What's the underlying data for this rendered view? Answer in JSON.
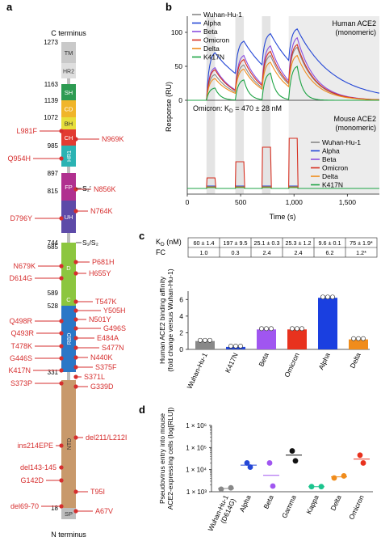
{
  "panels": {
    "a": "a",
    "b": "b",
    "c": "c",
    "d": "d"
  },
  "panel_a": {
    "c_terminus": "C terminus",
    "n_terminus": "N terminus",
    "domains": [
      {
        "label": "TM",
        "color": "#c9c9c9"
      },
      {
        "label": "HR2",
        "color": "#dedede"
      },
      {
        "label": "SH",
        "color": "#2d9b52"
      },
      {
        "label": "CD",
        "color": "#f0b52a"
      },
      {
        "label": "BH",
        "color": "#e7df3b"
      },
      {
        "label": "CH",
        "color": "#e23b32"
      },
      {
        "label": "HR1",
        "color": "#2bb3b3"
      },
      {
        "label": "FP",
        "color": "#b0308f"
      },
      {
        "label": "UH",
        "color": "#5d4aa8"
      },
      {
        "label": "D",
        "color": "#8cc63f"
      },
      {
        "label": "C",
        "color": "#8cc63f"
      },
      {
        "label": "RBD",
        "color": "#2a77c7"
      },
      {
        "label": "NTD",
        "color": "#c8996b"
      },
      {
        "label": "SP",
        "color": "#bdbdbd"
      }
    ],
    "positions": [
      "1273",
      "1163",
      "1139",
      "1072",
      "985",
      "897",
      "815",
      "744",
      "685",
      "589",
      "528",
      "331",
      "18"
    ],
    "sites": {
      "s2p": "S₂′",
      "s1s2": "S₁/S₂"
    },
    "mutations_left": [
      "L981F",
      "Q954H",
      "D796Y",
      "N679K",
      "D614G",
      "Q498R",
      "Q493R",
      "T478K",
      "G446S",
      "K417N",
      "S373P",
      "ins214EPE",
      "del143-145",
      "G142D",
      "del69-70"
    ],
    "mutations_right": [
      "N969K",
      "N856K",
      "N764K",
      "P681H",
      "H655Y",
      "T547K",
      "Y505H",
      "N501Y",
      "G496S",
      "E484A",
      "S477N",
      "N440K",
      "S375F",
      "S371L",
      "G339D",
      "del211/L212I",
      "T95I",
      "A67V"
    ]
  },
  "panel_b": {
    "human_label": "Human ACE2\n(monomeric)",
    "mouse_label": "Mouse ACE2\n(monomeric)",
    "omicron_kd": "Omicron: K",
    "kd_sub": "D",
    "kd_value": " = 470 ± 28 nM",
    "ylabel": "Response (RU)",
    "xlabel": "Time (s)",
    "legend": [
      "Wuhan-Hu-1",
      "Alpha",
      "Beta",
      "Omicron",
      "Delta",
      "K417N"
    ],
    "colors": [
      "#888888",
      "#2447d6",
      "#8a4fe0",
      "#d62e1f",
      "#f08c1b",
      "#1da344"
    ],
    "yticks": [
      "0",
      "50",
      "100"
    ],
    "xticks": [
      "0",
      "500",
      "1,000",
      "1,500"
    ]
  },
  "panel_c": {
    "kd_header": "K",
    "kd_sub": "D",
    "kd_unit": " (nM)",
    "fc_header": "FC",
    "kd_values": [
      "60 ± 1.4",
      "197 ± 9.5",
      "25.1 ± 0.3",
      "25.3 ± 1.2",
      "9.6 ± 0.1",
      "75 ± 1.9*"
    ],
    "fc_values": [
      "1.0",
      "0.3",
      "2.4",
      "2.4",
      "6.2",
      "1.2*"
    ],
    "ylabel1": "Human ACE2 binding affinity",
    "ylabel2": "(fold change versus Wuhan-Hu-1)",
    "yticks": [
      "0",
      "2",
      "4",
      "6"
    ]
  },
  "chart_data": [
    {
      "type": "bar",
      "categories": [
        "Wuhan-Hu-1",
        "K417N",
        "Beta",
        "Omicron",
        "Alpha",
        "Delta"
      ],
      "values": [
        1.0,
        0.3,
        2.4,
        2.4,
        6.2,
        1.2
      ],
      "colors": [
        "#888888",
        "#2447d6",
        "#a056f0",
        "#e8321e",
        "#1a3fe0",
        "#f08c1b"
      ],
      "ylim": [
        0,
        7
      ]
    },
    {
      "type": "scatter",
      "categories": [
        "Wuhan-Hu-1 (D614G)",
        "Alpha",
        "Beta",
        "Gamma",
        "Kappa",
        "Delta",
        "Omicron"
      ],
      "points": [
        [
          1300,
          1500
        ],
        [
          20000,
          13000
        ],
        [
          20000,
          1800
        ],
        [
          70000,
          25000
        ],
        [
          1700,
          1700
        ],
        [
          4200,
          5200
        ],
        [
          45000,
          20000
        ]
      ],
      "means": [
        1400,
        16000,
        5500,
        45000,
        1700,
        4700,
        30000
      ],
      "colors": [
        "#888888",
        "#2447d6",
        "#a056f0",
        "#111111",
        "#1cc48e",
        "#f08c1b",
        "#e8321e"
      ],
      "ylabel": "Pseudovirus entry into mouse ACE2-expressing cells (log[RLU])",
      "scale": "log",
      "ylim": [
        1000,
        1000000
      ]
    }
  ],
  "panel_d": {
    "ylabel1": "Pseudovirus entry into mouse",
    "ylabel2": "ACE2-expressing cells (log[RLU])",
    "yticks": [
      "1 × 10³",
      "1 × 10⁴",
      "1 × 10⁵",
      "1 × 10⁶"
    ],
    "cat_labels": [
      "Wuhan-Hu-1",
      "(D614G)",
      "Alpha",
      "Beta",
      "Gamma",
      "Kappa",
      "Delta",
      "Omicron"
    ]
  }
}
